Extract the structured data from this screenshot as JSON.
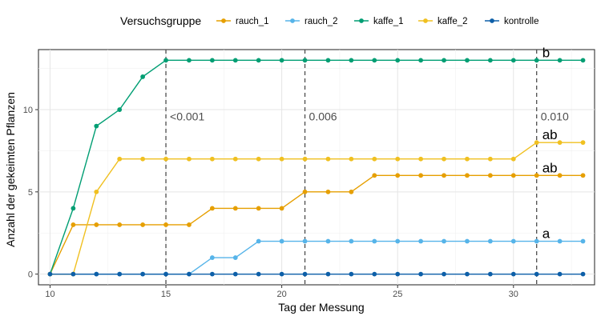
{
  "chart_data": {
    "type": "line",
    "xlabel": "Tag der Messung",
    "ylabel": "Anzahl der gekeimten Pflanzen",
    "xlim": [
      9.5,
      33.5
    ],
    "ylim": [
      -0.65,
      13.65
    ],
    "x_ticks": [
      10,
      15,
      20,
      25,
      30
    ],
    "y_ticks": [
      0,
      5,
      10
    ],
    "grid": true,
    "legend": {
      "title": "Versuchsgruppe",
      "position": "top"
    },
    "x": [
      10,
      11,
      12,
      13,
      14,
      15,
      16,
      17,
      18,
      19,
      20,
      21,
      22,
      23,
      24,
      25,
      26,
      27,
      28,
      29,
      30,
      31,
      32,
      33
    ],
    "series": [
      {
        "name": "rauch_1",
        "color": "#E69F00",
        "values": [
          0,
          3,
          3,
          3,
          3,
          3,
          3,
          4,
          4,
          4,
          4,
          5,
          5,
          5,
          6,
          6,
          6,
          6,
          6,
          6,
          6,
          6,
          6,
          6
        ]
      },
      {
        "name": "rauch_2",
        "color": "#56B4E9",
        "values": [
          0,
          0,
          0,
          0,
          0,
          0,
          0,
          1,
          1,
          2,
          2,
          2,
          2,
          2,
          2,
          2,
          2,
          2,
          2,
          2,
          2,
          2,
          2,
          2
        ]
      },
      {
        "name": "kaffe_1",
        "color": "#009E73",
        "values": [
          0,
          4,
          9,
          10,
          12,
          13,
          13,
          13,
          13,
          13,
          13,
          13,
          13,
          13,
          13,
          13,
          13,
          13,
          13,
          13,
          13,
          13,
          13,
          13
        ]
      },
      {
        "name": "kaffe_2",
        "color": "#F0C020",
        "values": [
          0,
          0,
          5,
          7,
          7,
          7,
          7,
          7,
          7,
          7,
          7,
          7,
          7,
          7,
          7,
          7,
          7,
          7,
          7,
          7,
          7,
          8,
          8,
          8
        ]
      },
      {
        "name": "kontrolle",
        "color": "#0D5FA8",
        "values": [
          0,
          0,
          0,
          0,
          0,
          0,
          0,
          0,
          0,
          0,
          0,
          0,
          0,
          0,
          0,
          0,
          0,
          0,
          0,
          0,
          0,
          0,
          0,
          0
        ]
      }
    ],
    "vlines": [
      {
        "x": 15,
        "label": "<0.001"
      },
      {
        "x": 21,
        "label": "0.006"
      },
      {
        "x": 31,
        "label": "0.010"
      }
    ],
    "group_letters": [
      {
        "x": 31,
        "y": 13,
        "text": "b"
      },
      {
        "x": 31,
        "y": 8,
        "text": "ab"
      },
      {
        "x": 31,
        "y": 6,
        "text": "ab"
      },
      {
        "x": 31,
        "y": 2,
        "text": "a"
      }
    ]
  }
}
